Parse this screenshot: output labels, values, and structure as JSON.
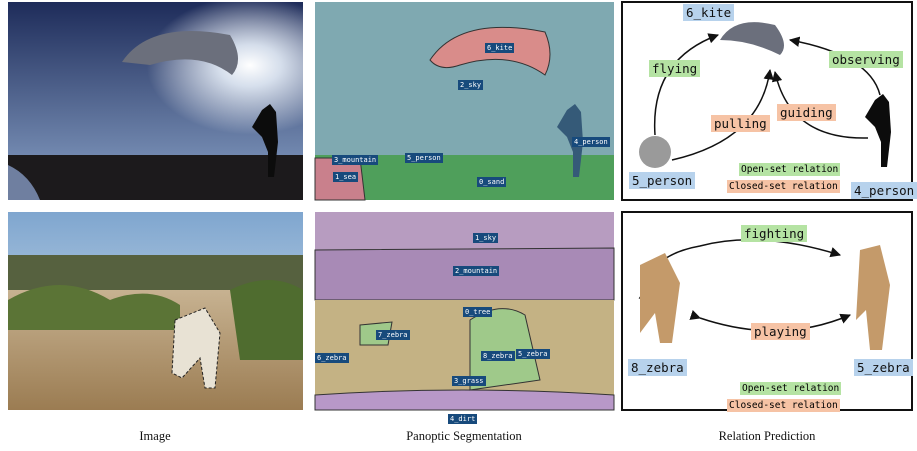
{
  "captions": [
    "Image",
    "Panoptic Segmentation",
    "Relation Prediction"
  ],
  "rows": [
    {
      "segments": [
        "6_kite",
        "2_sky",
        "3_mountain",
        "5_person",
        "4_person",
        "1_sea",
        "0_sand"
      ],
      "relations": {
        "nodes": [
          "6_kite",
          "5_person",
          "4_person"
        ],
        "open_set": [
          "flying",
          "observing"
        ],
        "closed_set": [
          "pulling",
          "guiding"
        ],
        "legend": [
          "Open-set relation",
          "Closed-set relation"
        ]
      }
    },
    {
      "segments": [
        "1_sky",
        "2_mountain",
        "0_tree",
        "7_zebra",
        "6_zebra",
        "8_zebra",
        "5_zebra",
        "3_grass",
        "4_dirt"
      ],
      "relations": {
        "nodes": [
          "8_zebra",
          "5_zebra"
        ],
        "open_set": [
          "fighting"
        ],
        "closed_set": [
          "playing"
        ],
        "legend": [
          "Open-set relation",
          "Closed-set relation"
        ]
      }
    }
  ]
}
